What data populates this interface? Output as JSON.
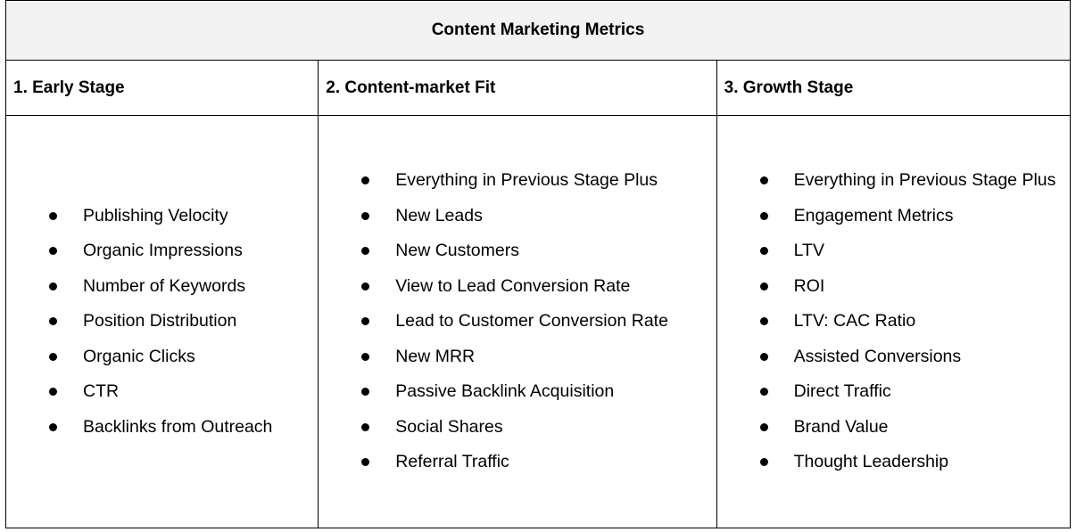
{
  "table": {
    "title": "Content Marketing Metrics",
    "columns": [
      {
        "heading": "1. Early Stage",
        "items": [
          "Publishing Velocity",
          "Organic Impressions",
          "Number of Keywords",
          "Position Distribution",
          "Organic Clicks",
          "CTR",
          "Backlinks from Outreach"
        ]
      },
      {
        "heading": "2. Content-market Fit",
        "items": [
          "Everything in Previous Stage Plus",
          "New Leads",
          "New Customers",
          "View to Lead Conversion Rate",
          "Lead to Customer Conversion Rate",
          "New MRR",
          "Passive Backlink Acquisition",
          "Social Shares",
          "Referral Traffic"
        ]
      },
      {
        "heading": "3. Growth Stage",
        "items": [
          "Everything in Previous Stage Plus",
          "Engagement Metrics",
          "LTV",
          "ROI",
          "LTV: CAC Ratio",
          "Assisted Conversions",
          "Direct Traffic",
          "Brand Value",
          "Thought Leadership"
        ]
      }
    ]
  }
}
